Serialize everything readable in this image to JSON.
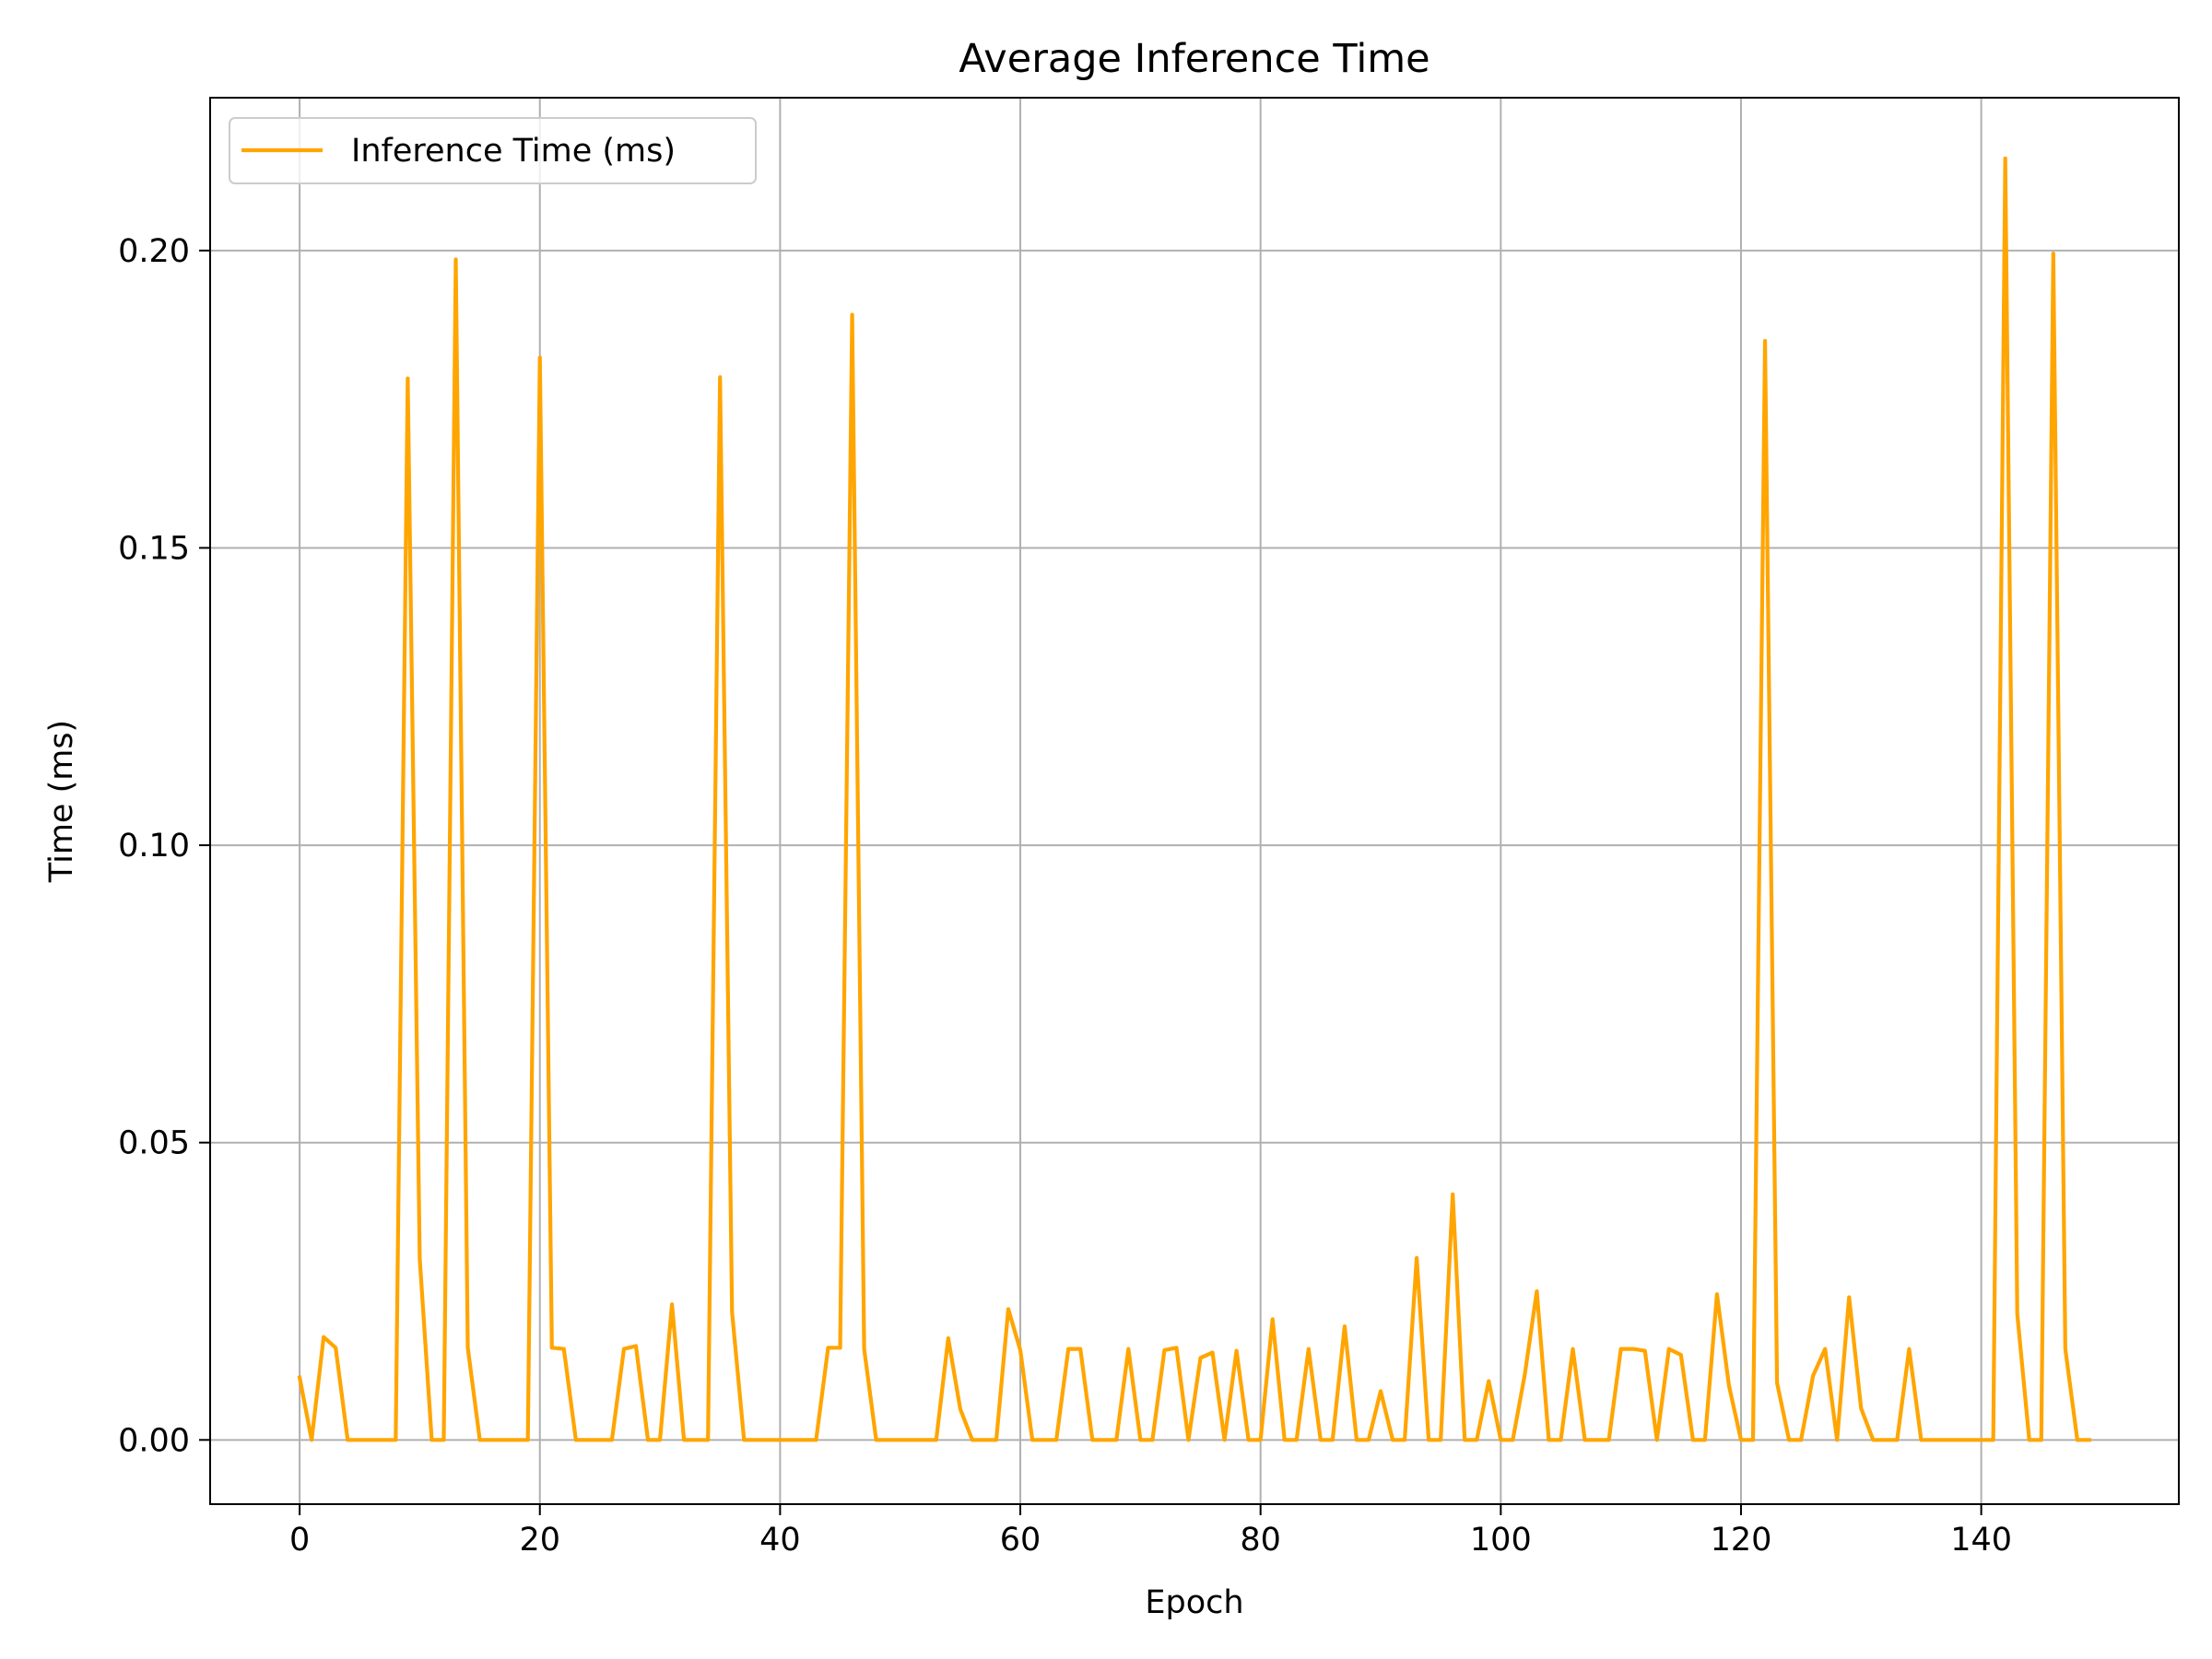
{
  "chart_data": {
    "type": "line",
    "title": "Average Inference Time",
    "xlabel": "Epoch",
    "ylabel": "Time (ms)",
    "xlim": [
      -7.45,
      156.45
    ],
    "ylim": [
      -0.0108,
      0.2257
    ],
    "xticks": [
      0,
      20,
      40,
      60,
      80,
      100,
      120,
      140
    ],
    "yticks": [
      0.0,
      0.05,
      0.1,
      0.15,
      0.2
    ],
    "xtick_labels": [
      "0",
      "20",
      "40",
      "60",
      "80",
      "100",
      "120",
      "140"
    ],
    "ytick_labels": [
      "0.00",
      "0.05",
      "0.10",
      "0.15",
      "0.20"
    ],
    "grid": true,
    "legend_position": "top-left",
    "series": [
      {
        "name": "Inference Time (ms)",
        "color": "#ffa500",
        "x": [
          0,
          1,
          2,
          3,
          4,
          5,
          6,
          7,
          8,
          9,
          10,
          11,
          12,
          13,
          14,
          15,
          16,
          17,
          18,
          19,
          20,
          21,
          22,
          23,
          24,
          25,
          26,
          27,
          28,
          29,
          30,
          31,
          32,
          33,
          34,
          35,
          36,
          37,
          38,
          39,
          40,
          41,
          42,
          43,
          44,
          45,
          46,
          47,
          48,
          49,
          50,
          51,
          52,
          53,
          54,
          55,
          56,
          57,
          58,
          59,
          60,
          61,
          62,
          63,
          64,
          65,
          66,
          67,
          68,
          69,
          70,
          71,
          72,
          73,
          74,
          75,
          76,
          77,
          78,
          79,
          80,
          81,
          82,
          83,
          84,
          85,
          86,
          87,
          88,
          89,
          90,
          91,
          92,
          93,
          94,
          95,
          96,
          97,
          98,
          99,
          100,
          101,
          102,
          103,
          104,
          105,
          106,
          107,
          108,
          109,
          110,
          111,
          112,
          113,
          114,
          115,
          116,
          117,
          118,
          119,
          120,
          121,
          122,
          123,
          124,
          125,
          126,
          127,
          128,
          129,
          130,
          131,
          132,
          133,
          134,
          135,
          136,
          137,
          138,
          139,
          140,
          141,
          142,
          143,
          144,
          145,
          146,
          147,
          148,
          149
        ],
        "y": [
          0.0105,
          0.0,
          0.0173,
          0.0155,
          0.0,
          0.0,
          0.0,
          0.0,
          0.0,
          0.1785,
          0.0305,
          0.0,
          0.0,
          0.1985,
          0.0155,
          0.0,
          0.0,
          0.0,
          0.0,
          0.0,
          0.182,
          0.0155,
          0.0153,
          0.0,
          0.0,
          0.0,
          0.0,
          0.0153,
          0.0158,
          0.0,
          0.0,
          0.0228,
          0.0,
          0.0,
          0.0,
          0.1787,
          0.0215,
          0.0,
          0.0,
          0.0,
          0.0,
          0.0,
          0.0,
          0.0,
          0.0155,
          0.0155,
          0.1892,
          0.0153,
          0.0,
          0.0,
          0.0,
          0.0,
          0.0,
          0.0,
          0.0171,
          0.0052,
          0.0,
          0.0,
          0.0,
          0.022,
          0.0151,
          0.0,
          0.0,
          0.0,
          0.0153,
          0.0153,
          0.0,
          0.0,
          0.0,
          0.0153,
          0.0,
          0.0,
          0.0151,
          0.0155,
          0.0,
          0.0138,
          0.0147,
          0.0,
          0.015,
          0.0,
          0.0,
          0.0203,
          0.0,
          0.0,
          0.0153,
          0.0,
          0.0,
          0.0191,
          0.0,
          0.0,
          0.0082,
          0.0,
          0.0,
          0.0306,
          0.0,
          0.0,
          0.0413,
          0.0,
          0.0,
          0.0099,
          0.0,
          0.0,
          0.011,
          0.025,
          0.0,
          0.0,
          0.0153,
          0.0,
          0.0,
          0.0,
          0.0153,
          0.0153,
          0.015,
          0.0,
          0.0153,
          0.0143,
          0.0,
          0.0,
          0.0245,
          0.0091,
          0.0,
          0.0,
          0.1848,
          0.0096,
          0.0,
          0.0,
          0.0108,
          0.0153,
          0.0,
          0.024,
          0.0053,
          0.0,
          0.0,
          0.0,
          0.0153,
          0.0,
          0.0,
          0.0,
          0.0,
          0.0,
          0.0,
          0.0,
          0.2155,
          0.0212,
          0.0,
          0.0,
          0.1995,
          0.0153,
          0.0,
          0.0
        ]
      }
    ]
  }
}
